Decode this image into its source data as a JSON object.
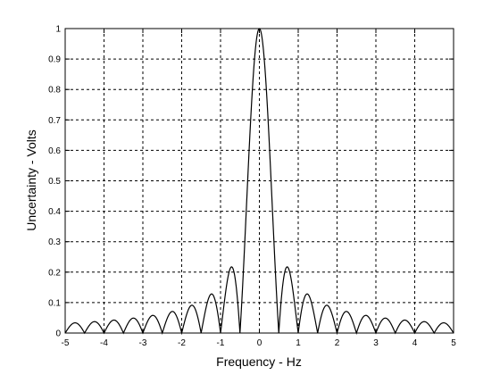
{
  "chart_data": {
    "type": "line",
    "title": "",
    "xlabel": "Frequency - Hz",
    "ylabel": "Uncertainty - Volts",
    "xlim": [
      -5,
      5
    ],
    "ylim": [
      0,
      1
    ],
    "grid": true,
    "grid_style": "dashed",
    "x_ticks": [
      -5,
      -4,
      -3,
      -2,
      -1,
      0,
      1,
      2,
      3,
      4,
      5
    ],
    "x_tick_labels": [
      "-5",
      "-4",
      "-3",
      "-2",
      "-1",
      "0",
      "1",
      "2",
      "3",
      "4",
      "5"
    ],
    "y_ticks": [
      0,
      0.1,
      0.2,
      0.3,
      0.4,
      0.5,
      0.6,
      0.7,
      0.8,
      0.9,
      1
    ],
    "y_tick_labels": [
      "0",
      "0.1",
      "0.2",
      "0.3",
      "0.4",
      "0.5",
      "0.6",
      "0.7",
      "0.8",
      "0.9",
      "1"
    ],
    "series": [
      {
        "color": "#000000",
        "function": "abs(sin(2*pi*f)/(2*pi*f))",
        "x": [
          -5,
          -4.875,
          -4.75,
          -4.625,
          -4.5,
          -4.375,
          -4.25,
          -4.125,
          -4,
          -3.875,
          -3.75,
          -3.625,
          -3.5,
          -3.375,
          -3.25,
          -3.125,
          -3,
          -2.875,
          -2.75,
          -2.625,
          -2.5,
          -2.375,
          -2.25,
          -2.125,
          -2,
          -1.875,
          -1.75,
          -1.625,
          -1.5,
          -1.375,
          -1.25,
          -1.125,
          -1,
          -0.875,
          -0.75,
          -0.625,
          -0.5,
          -0.375,
          -0.25,
          -0.125,
          0,
          0.125,
          0.25,
          0.375,
          0.5,
          0.625,
          0.75,
          0.875,
          1,
          1.125,
          1.25,
          1.375,
          1.5,
          1.625,
          1.75,
          1.875,
          2,
          2.125,
          2.25,
          2.375,
          2.5,
          2.625,
          2.75,
          2.875,
          3,
          3.125,
          3.25,
          3.375,
          3.5,
          3.625,
          3.75,
          3.875,
          4,
          4.125,
          4.25,
          4.375,
          4.5,
          4.625,
          4.75,
          4.875,
          5
        ],
        "y": [
          0,
          0.023,
          0.034,
          0.024,
          0,
          0.026,
          0.037,
          0.027,
          0,
          0.029,
          0.042,
          0.031,
          0,
          0.033,
          0.049,
          0.036,
          0,
          0.039,
          0.058,
          0.043,
          0,
          0.047,
          0.071,
          0.053,
          0,
          0.06,
          0.091,
          0.069,
          0,
          0.082,
          0.127,
          0.1,
          0,
          0.129,
          0.212,
          0.18,
          0,
          0.3,
          0.637,
          0.9,
          1,
          0.9,
          0.637,
          0.3,
          0,
          0.18,
          0.212,
          0.129,
          0,
          0.1,
          0.127,
          0.082,
          0,
          0.069,
          0.091,
          0.06,
          0,
          0.053,
          0.071,
          0.047,
          0,
          0.043,
          0.058,
          0.039,
          0,
          0.036,
          0.049,
          0.033,
          0,
          0.031,
          0.042,
          0.029,
          0,
          0.027,
          0.037,
          0.026,
          0,
          0.024,
          0.034,
          0.023,
          0
        ]
      }
    ]
  }
}
